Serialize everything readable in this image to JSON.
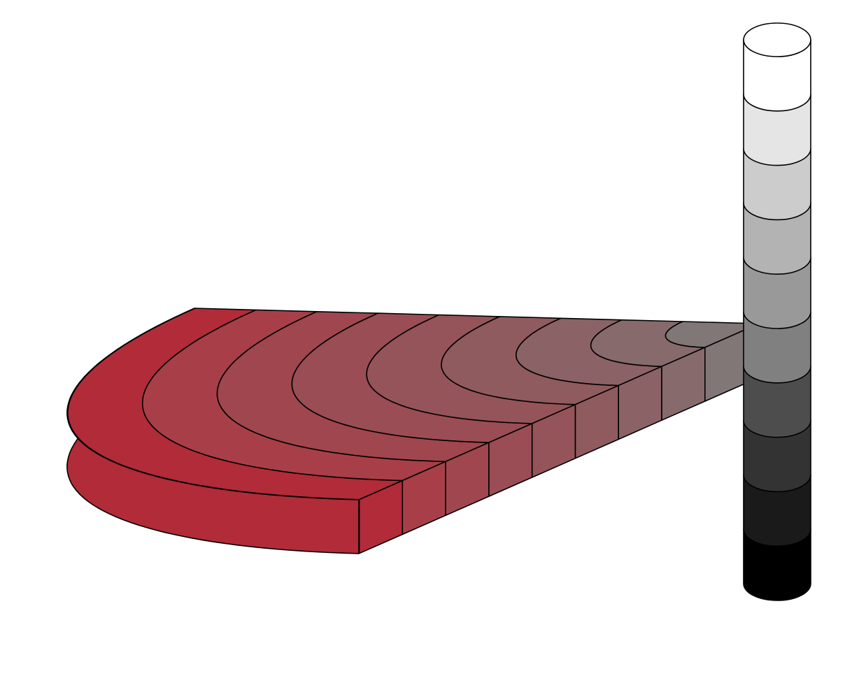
{
  "column": {
    "colors": [
      "#ffffff",
      "#e5e5e5",
      "#cccccc",
      "#b3b3b3",
      "#999999",
      "#808080",
      "#4d4d4d",
      "#333333",
      "#1a1a1a",
      "#000000"
    ]
  },
  "slice": {
    "colors": [
      "#b12b38",
      "#a83f48",
      "#a0464e",
      "#9a4d54",
      "#955459",
      "#8f5b5f",
      "#8b6265",
      "#876a6c",
      "#827777"
    ]
  }
}
